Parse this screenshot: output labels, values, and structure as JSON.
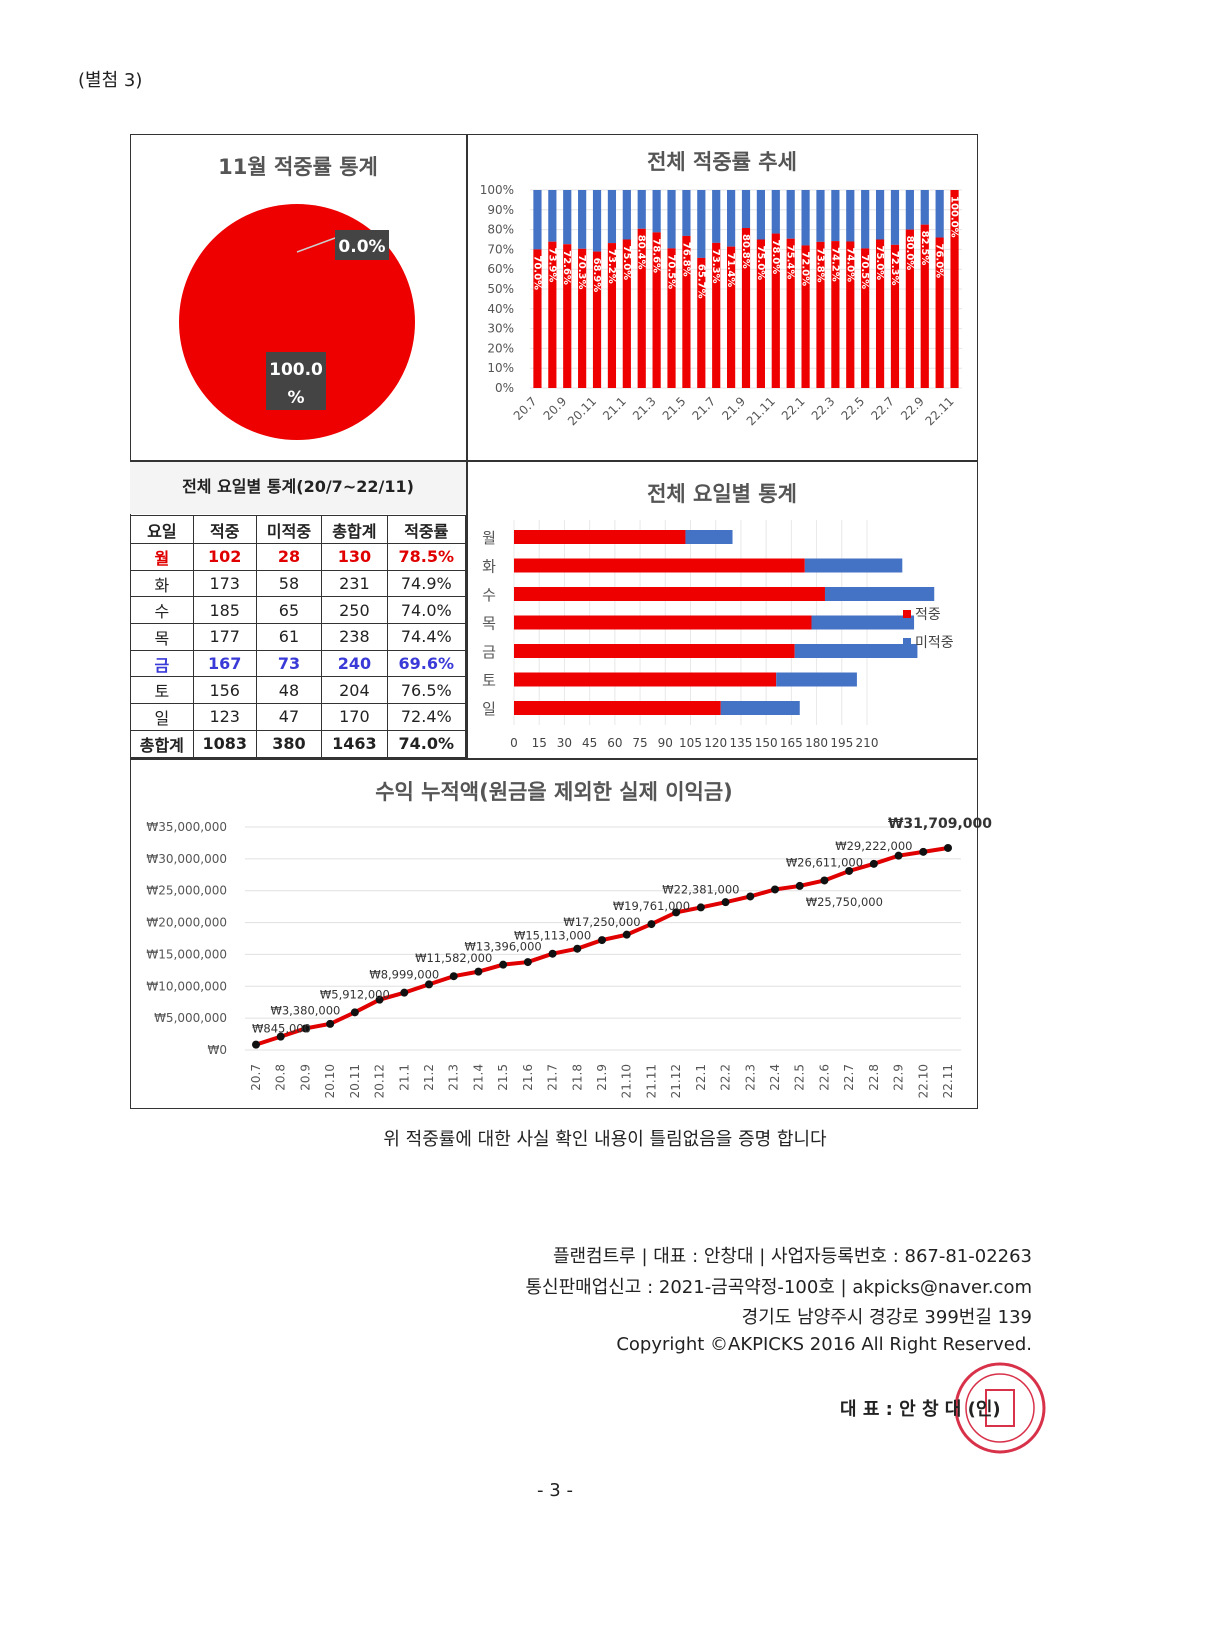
{
  "attachment_label": "(별첨 3)",
  "colors": {
    "hit": "#ee0000",
    "miss": "#4472c4",
    "line": "#e00000"
  },
  "pie": {
    "title": "11월 적중률 통계",
    "chart_data": {
      "type": "pie",
      "slices": [
        {
          "label": "적중",
          "value": 100.0,
          "display": "100.0 %"
        },
        {
          "label": "미적중",
          "value": 0.0,
          "display": "0.0%"
        }
      ]
    }
  },
  "trend": {
    "chart_data": {
      "type": "bar",
      "stacked": true,
      "title": "전체 적중률 추세",
      "categories": [
        "20.7",
        "20.8",
        "20.9",
        "20.10",
        "20.11",
        "20.12",
        "21.1",
        "21.2",
        "21.3",
        "21.4",
        "21.5",
        "21.6",
        "21.7",
        "21.8",
        "21.9",
        "21.10",
        "21.11",
        "21.12",
        "22.1",
        "22.2",
        "22.3",
        "22.4",
        "22.5",
        "22.6",
        "22.7",
        "22.8",
        "22.9",
        "22.10",
        "22.11"
      ],
      "tick_labels": [
        "20.7",
        "20.9",
        "20.11",
        "21.1",
        "21.3",
        "21.5",
        "21.7",
        "21.9",
        "21.11",
        "22.1",
        "22.3",
        "22.5",
        "22.7",
        "22.9",
        "22.11"
      ],
      "hit_rate": [
        70.0,
        73.9,
        72.6,
        70.3,
        68.9,
        73.2,
        75.0,
        80.4,
        78.6,
        70.5,
        76.8,
        65.7,
        73.3,
        71.4,
        80.8,
        75.0,
        78.0,
        75.4,
        72.0,
        73.8,
        74.2,
        74.0,
        70.5,
        75.0,
        72.3,
        80.0,
        82.5,
        76.0,
        100.0
      ],
      "ylim": [
        0,
        100
      ],
      "yticks": [
        "0%",
        "10%",
        "20%",
        "30%",
        "40%",
        "50%",
        "60%",
        "70%",
        "80%",
        "90%",
        "100%"
      ]
    }
  },
  "table": {
    "title": "전체 요일별 통계(20/7~22/11)",
    "headers": [
      "요일",
      "적중",
      "미적중",
      "총합계",
      "적중률"
    ],
    "rows": [
      [
        "월",
        "102",
        "28",
        "130",
        "78.5%"
      ],
      [
        "화",
        "173",
        "58",
        "231",
        "74.9%"
      ],
      [
        "수",
        "185",
        "65",
        "250",
        "74.0%"
      ],
      [
        "목",
        "177",
        "61",
        "238",
        "74.4%"
      ],
      [
        "금",
        "167",
        "73",
        "240",
        "69.6%"
      ],
      [
        "토",
        "156",
        "48",
        "204",
        "76.5%"
      ],
      [
        "일",
        "123",
        "47",
        "170",
        "72.4%"
      ]
    ],
    "total": [
      "총합계",
      "1083",
      "380",
      "1463",
      "74.0%"
    ]
  },
  "weekday": {
    "chart_data": {
      "type": "bar",
      "orientation": "horizontal",
      "stacked": true,
      "title": "전체 요일별 통계",
      "categories": [
        "월",
        "화",
        "수",
        "목",
        "금",
        "토",
        "일"
      ],
      "series": [
        {
          "name": "적중",
          "values": [
            102,
            173,
            185,
            177,
            167,
            156,
            123
          ]
        },
        {
          "name": "미적중",
          "values": [
            28,
            58,
            65,
            61,
            73,
            48,
            47
          ]
        }
      ],
      "xticks": [
        0,
        15,
        30,
        45,
        60,
        75,
        90,
        105,
        120,
        135,
        150,
        165,
        180,
        195,
        210
      ],
      "legend": "right"
    }
  },
  "profit": {
    "chart_data": {
      "type": "line",
      "title": "수익 누적액(원금을 제외한 실제 이익금)",
      "categories": [
        "20.7",
        "20.8",
        "20.9",
        "20.10",
        "20.11",
        "20.12",
        "21.1",
        "21.2",
        "21.3",
        "21.4",
        "21.5",
        "21.6",
        "21.7",
        "21.8",
        "21.9",
        "21.10",
        "21.11",
        "21.12",
        "22.1",
        "22.2",
        "22.3",
        "22.4",
        "22.5",
        "22.6",
        "22.7",
        "22.8",
        "22.9",
        "22.10",
        "22.11"
      ],
      "values": [
        845000,
        2100000,
        3380000,
        4100000,
        5912000,
        7900000,
        8999000,
        10300000,
        11582000,
        12300000,
        13396000,
        13800000,
        15113000,
        15900000,
        17250000,
        18100000,
        19761000,
        21600000,
        22381000,
        23200000,
        24100000,
        25200000,
        25750000,
        26611000,
        28100000,
        29222000,
        30500000,
        31100000,
        31709000
      ],
      "data_labels": {
        "0": "₩845,000",
        "2": "₩3,380,000",
        "4": "₩5,912,000",
        "6": "₩8,999,000",
        "8": "₩11,582,000",
        "10": "₩13,396,000",
        "12": "₩15,113,000",
        "14": "₩17,250,000",
        "16": "₩19,761,000",
        "18": "₩22,381,000",
        "22": "₩25,750,000",
        "23": "₩26,611,000",
        "25": "₩29,222,000",
        "28": "₩31,709,000"
      },
      "ylim": [
        0,
        35000000
      ],
      "yticks": [
        "₩0",
        "₩5,000,000",
        "₩10,000,000",
        "₩15,000,000",
        "₩20,000,000",
        "₩25,000,000",
        "₩30,000,000",
        "₩35,000,000"
      ]
    }
  },
  "caption": "위 적중률에 대한 사실 확인 내용이 틀림없음을 증명 합니다",
  "footer": [
    "플랜컴트루 | 대표 : 안창대 | 사업자등록번호 : 867-81-02263",
    "통신판매업신고 : 2021-금곡약정-100호 | akpicks@naver.com",
    "경기도 남양주시 경강로 399번길 139",
    "Copyright ©AKPICKS 2016 All Right Reserved."
  ],
  "signature": "대 표 : 안 창 대 (인)",
  "page_number": "- 3 -"
}
